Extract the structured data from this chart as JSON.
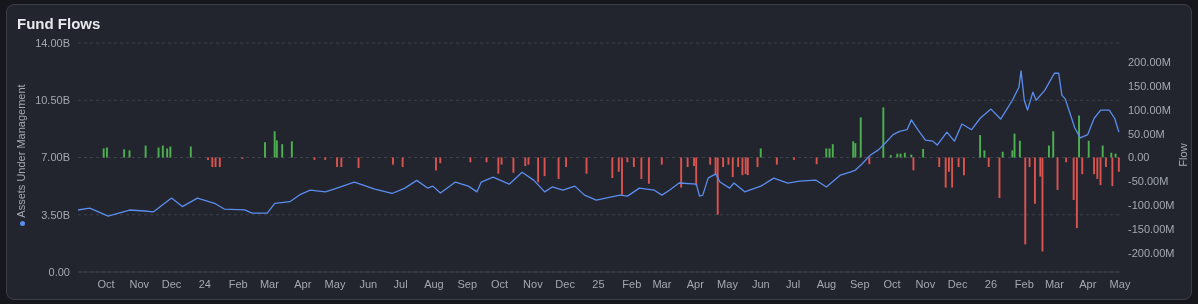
{
  "chart_data": {
    "type": "line",
    "title": "Fund Flows",
    "ylabel": "Assets Under Management",
    "y2label": "Flow",
    "grid": "y",
    "xlim": [
      "2023-09-05",
      "2026-05-01"
    ],
    "xticks": [
      {
        "value": "2023-10-01",
        "label": "Oct"
      },
      {
        "value": "2023-11-01",
        "label": "Nov"
      },
      {
        "value": "2023-12-01",
        "label": "Dec"
      },
      {
        "value": "2024-01-01",
        "label": "24"
      },
      {
        "value": "2024-02-01",
        "label": "Feb"
      },
      {
        "value": "2024-03-01",
        "label": "Mar"
      },
      {
        "value": "2024-04-01",
        "label": "Apr"
      },
      {
        "value": "2024-05-01",
        "label": "May"
      },
      {
        "value": "2024-06-01",
        "label": "Jun"
      },
      {
        "value": "2024-07-01",
        "label": "Jul"
      },
      {
        "value": "2024-08-01",
        "label": "Aug"
      },
      {
        "value": "2024-09-01",
        "label": "Sep"
      },
      {
        "value": "2024-10-01",
        "label": "Oct"
      },
      {
        "value": "2024-11-01",
        "label": "Nov"
      },
      {
        "value": "2024-12-01",
        "label": "Dec"
      },
      {
        "value": "2025-01-01",
        "label": "25"
      },
      {
        "value": "2025-02-01",
        "label": "Feb"
      },
      {
        "value": "2025-03-01",
        "label": "Mar"
      },
      {
        "value": "2025-04-01",
        "label": "Apr"
      },
      {
        "value": "2025-05-01",
        "label": "May"
      },
      {
        "value": "2025-06-01",
        "label": "Jun"
      },
      {
        "value": "2025-07-01",
        "label": "Jul"
      },
      {
        "value": "2025-08-01",
        "label": "Aug"
      },
      {
        "value": "2025-09-01",
        "label": "Sep"
      },
      {
        "value": "2025-10-01",
        "label": "Oct"
      },
      {
        "value": "2025-11-01",
        "label": "Nov"
      },
      {
        "value": "2025-12-01",
        "label": "Dec"
      },
      {
        "value": "2026-01-01",
        "label": "26"
      },
      {
        "value": "2026-02-01",
        "label": "Feb"
      },
      {
        "value": "2026-03-01",
        "label": "Mar"
      },
      {
        "value": "2026-04-01",
        "label": "Apr"
      },
      {
        "value": "2026-05-01",
        "label": "May"
      }
    ],
    "ylim": [
      0,
      14
    ],
    "yticks": [
      {
        "value": 0,
        "label": "0.00"
      },
      {
        "value": 3.5,
        "label": "3.50B"
      },
      {
        "value": 7,
        "label": "7.00B"
      },
      {
        "value": 10.5,
        "label": "10.50B"
      },
      {
        "value": 14,
        "label": "14.00B"
      }
    ],
    "y2lim": [
      -240,
      240
    ],
    "y2ticks": [
      {
        "value": -200,
        "label": "-200.00M"
      },
      {
        "value": -150,
        "label": "-150.00M"
      },
      {
        "value": -100,
        "label": "-100.00M"
      },
      {
        "value": -50,
        "label": "-50.00M"
      },
      {
        "value": 0,
        "label": "0.00"
      },
      {
        "value": 50,
        "label": "50.00M"
      },
      {
        "value": 100,
        "label": "100.00M"
      },
      {
        "value": 150,
        "label": "150.00M"
      },
      {
        "value": 200,
        "label": "200.00M"
      }
    ],
    "series": [
      {
        "type": "bar",
        "axis": "y2",
        "color": "#d9534f",
        "x": [
          "2024-01-04",
          "2024-01-08",
          "2024-01-11",
          "2024-01-15",
          "2024-02-05",
          "2024-04-12",
          "2024-04-22",
          "2024-05-03",
          "2024-05-07",
          "2024-05-23",
          "2024-06-24",
          "2024-07-03",
          "2024-08-03",
          "2024-08-07",
          "2024-09-04",
          "2024-09-19",
          "2024-09-30",
          "2024-10-03",
          "2024-10-14",
          "2024-10-25",
          "2024-10-28",
          "2024-11-06",
          "2024-11-12",
          "2024-11-25",
          "2024-12-02",
          "2024-12-21",
          "2025-01-14",
          "2025-01-20",
          "2025-01-23",
          "2025-01-28",
          "2025-02-03",
          "2025-02-10",
          "2025-02-17",
          "2025-03-01",
          "2025-03-19",
          "2025-03-25",
          "2025-03-31",
          "2025-04-02",
          "2025-04-15",
          "2025-04-20",
          "2025-04-22",
          "2025-04-27",
          "2025-05-02",
          "2025-05-06",
          "2025-05-11",
          "2025-05-15",
          "2025-05-18",
          "2025-05-20",
          "2025-05-29",
          "2025-06-16",
          "2025-07-02",
          "2025-07-23",
          "2025-09-10",
          "2025-10-21",
          "2025-11-14",
          "2025-11-20",
          "2025-11-23",
          "2025-11-26",
          "2025-12-02",
          "2025-12-07",
          "2025-12-30",
          "2026-01-09",
          "2026-02-02",
          "2026-02-06",
          "2026-02-11",
          "2026-02-16",
          "2026-02-18",
          "2026-03-04",
          "2026-03-12",
          "2026-03-19",
          "2026-03-22",
          "2026-03-27",
          "2026-04-07",
          "2026-04-10",
          "2026-04-13",
          "2026-04-18",
          "2026-04-24",
          "2026-04-30"
        ],
        "values": [
          -5,
          -20,
          -20,
          -20,
          -3,
          -5,
          -5,
          -20,
          -20,
          -22,
          -15,
          -20,
          -27,
          -12,
          -10,
          -10,
          -34,
          -15,
          -32,
          -18,
          -15,
          -52,
          -39,
          -45,
          -20,
          -34,
          -43,
          -30,
          -78,
          -10,
          -20,
          -45,
          -55,
          -15,
          -63,
          -20,
          -18,
          -59,
          -15,
          -35,
          -120,
          -20,
          -15,
          -41,
          -20,
          -37,
          -35,
          -37,
          -20,
          -15,
          -5,
          -14,
          -14,
          -27,
          -20,
          -63,
          -30,
          -63,
          -20,
          -37,
          -20,
          -85,
          -182,
          -20,
          -97,
          -40,
          -197,
          -68,
          -10,
          -89,
          -148,
          -35,
          -35,
          -45,
          -58,
          -20,
          -60,
          -30
        ]
      },
      {
        "type": "bar",
        "axis": "y2",
        "color": "#4caf50",
        "x": [
          "2023-09-29",
          "2023-10-02",
          "2023-10-18",
          "2023-10-23",
          "2023-11-07",
          "2023-11-19",
          "2023-11-23",
          "2023-11-27",
          "2023-11-30",
          "2023-12-19",
          "2024-02-26",
          "2024-03-06",
          "2024-03-08",
          "2024-03-13",
          "2024-03-22",
          "2025-06-01",
          "2025-08-01",
          "2025-08-04",
          "2025-08-07",
          "2025-08-26",
          "2025-08-28",
          "2025-09-02",
          "2025-09-23",
          "2025-09-30",
          "2025-10-06",
          "2025-10-09",
          "2025-10-13",
          "2025-10-19",
          "2025-10-30",
          "2025-12-22",
          "2025-12-26",
          "2026-01-12",
          "2026-01-21",
          "2026-01-23",
          "2026-01-28",
          "2026-02-24",
          "2026-02-28",
          "2026-03-24",
          "2026-04-02",
          "2026-04-15",
          "2026-04-23",
          "2026-04-27"
        ],
        "values": [
          19,
          21,
          17,
          15,
          25,
          21,
          25,
          19,
          23,
          23,
          32,
          55,
          36,
          28,
          34,
          19,
          19,
          19,
          28,
          34,
          30,
          84,
          105,
          5,
          8,
          8,
          10,
          6,
          18,
          47,
          15,
          12,
          15,
          50,
          35,
          25,
          55,
          88,
          35,
          25,
          10,
          8
        ]
      },
      {
        "axis": "y",
        "color": "#5b8def",
        "x": [
          "2023-09-05",
          "2023-09-16",
          "2023-10-03",
          "2023-10-23",
          "2023-11-06",
          "2023-11-14",
          "2023-12-01",
          "2023-12-11",
          "2023-12-25",
          "2024-01-10",
          "2024-01-19",
          "2024-02-07",
          "2024-02-14",
          "2024-02-28",
          "2024-03-06",
          "2024-03-20",
          "2024-03-30",
          "2024-04-08",
          "2024-04-22",
          "2024-04-30",
          "2024-05-19",
          "2024-06-07",
          "2024-06-23",
          "2024-07-05",
          "2024-07-16",
          "2024-07-26",
          "2024-07-31",
          "2024-08-07",
          "2024-08-21",
          "2024-09-02",
          "2024-09-10",
          "2024-09-14",
          "2024-09-25",
          "2024-10-10",
          "2024-10-22",
          "2024-11-02",
          "2024-11-12",
          "2024-11-19",
          "2024-11-29",
          "2024-12-10",
          "2024-12-19",
          "2024-12-30",
          "2025-01-21",
          "2025-01-28",
          "2025-02-08",
          "2025-02-22",
          "2025-03-01",
          "2025-03-08",
          "2025-03-17",
          "2025-04-02",
          "2025-04-05",
          "2025-04-08",
          "2025-04-13",
          "2025-04-20",
          "2025-04-24",
          "2025-05-03",
          "2025-05-07",
          "2025-05-17",
          "2025-06-01",
          "2025-06-13",
          "2025-06-26",
          "2025-07-07",
          "2025-07-22",
          "2025-08-01",
          "2025-08-14",
          "2025-08-23",
          "2025-08-28",
          "2025-09-03",
          "2025-09-11",
          "2025-09-18",
          "2025-09-25",
          "2025-10-02",
          "2025-10-08",
          "2025-10-15",
          "2025-10-19",
          "2025-10-25",
          "2025-11-01",
          "2025-11-08",
          "2025-11-12",
          "2025-11-21",
          "2025-11-28",
          "2025-12-05",
          "2025-12-14",
          "2025-12-22",
          "2026-01-01",
          "2026-01-10",
          "2026-01-21",
          "2026-01-27",
          "2026-01-29",
          "2026-02-01",
          "2026-02-04",
          "2026-02-09",
          "2026-02-12",
          "2026-02-20",
          "2026-03-01",
          "2026-03-05",
          "2026-03-08",
          "2026-03-11",
          "2026-03-20",
          "2026-03-25",
          "2026-04-01",
          "2026-04-07",
          "2026-04-13",
          "2026-04-21",
          "2026-04-26",
          "2026-04-30"
        ],
        "values": [
          3.79,
          3.9,
          3.42,
          3.79,
          3.73,
          3.67,
          4.52,
          4.0,
          4.52,
          4.2,
          3.85,
          3.8,
          3.6,
          3.6,
          4.2,
          4.3,
          4.75,
          5.0,
          4.9,
          5.07,
          5.5,
          5.07,
          4.8,
          5.13,
          5.6,
          5.13,
          5.25,
          4.83,
          5.5,
          5.25,
          4.9,
          5.5,
          5.8,
          5.37,
          6.1,
          5.6,
          4.9,
          5.2,
          5.0,
          5.25,
          4.7,
          4.4,
          4.7,
          4.64,
          5.13,
          5.0,
          4.7,
          5.0,
          5.44,
          5.37,
          4.64,
          4.7,
          5.74,
          6.0,
          5.5,
          5.13,
          5.44,
          4.9,
          5.25,
          5.74,
          5.44,
          5.56,
          5.62,
          5.2,
          5.93,
          6.1,
          6.23,
          6.6,
          7.15,
          7.45,
          7.9,
          8.4,
          8.6,
          8.7,
          9.3,
          8.7,
          8.06,
          8.0,
          7.76,
          8.55,
          8.0,
          9.05,
          8.7,
          9.4,
          9.96,
          9.35,
          10.5,
          11.3,
          12.3,
          10.5,
          9.9,
          11.0,
          10.5,
          11.1,
          12.15,
          12.15,
          10.8,
          10.6,
          8.8,
          8.2,
          8.4,
          9.4,
          9.9,
          9.9,
          9.4,
          8.55
        ]
      }
    ]
  }
}
